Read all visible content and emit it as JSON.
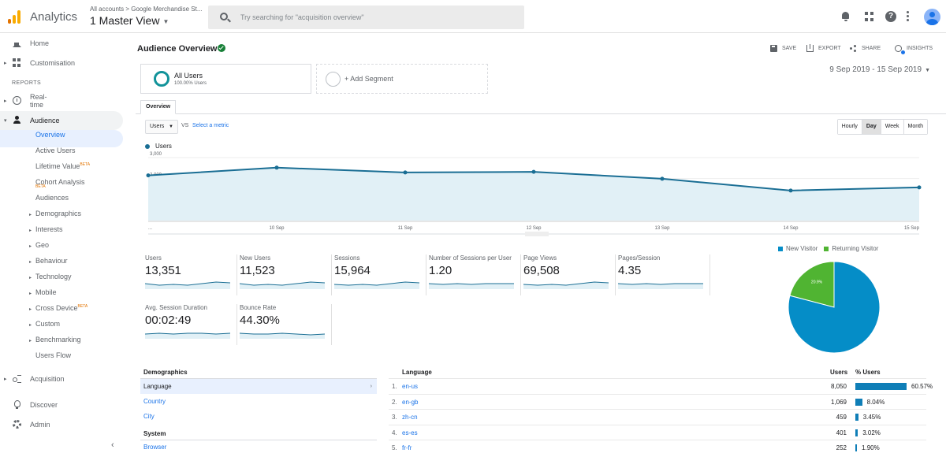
{
  "header": {
    "app_title": "Analytics",
    "account_path": "All accounts > Google Merchandise St...",
    "view_name": "1 Master View",
    "search_placeholder": "Try searching for \"acquisition overview\"",
    "icons": [
      "bell-icon",
      "apps-grid-icon",
      "help-icon",
      "more-vert-icon",
      "avatar"
    ]
  },
  "sidebar": {
    "home": "Home",
    "customisation": "Customisation",
    "reports_heading": "REPORTS",
    "realtime": "Real-time",
    "audience": "Audience",
    "audience_items": [
      {
        "label": "Overview",
        "beta": ""
      },
      {
        "label": "Active Users",
        "beta": ""
      },
      {
        "label": "Lifetime Value",
        "beta": "BETA"
      },
      {
        "label": "Cohort Analysis",
        "beta": "BETA"
      },
      {
        "label": "Audiences",
        "beta": ""
      },
      {
        "label": "Demographics",
        "beta": ""
      },
      {
        "label": "Interests",
        "beta": ""
      },
      {
        "label": "Geo",
        "beta": ""
      },
      {
        "label": "Behaviour",
        "beta": ""
      },
      {
        "label": "Technology",
        "beta": ""
      },
      {
        "label": "Mobile",
        "beta": ""
      },
      {
        "label": "Cross Device",
        "beta": "BETA"
      },
      {
        "label": "Custom",
        "beta": ""
      },
      {
        "label": "Benchmarking",
        "beta": ""
      },
      {
        "label": "Users Flow",
        "beta": ""
      }
    ],
    "acquisition": "Acquisition",
    "discover": "Discover",
    "admin": "Admin",
    "collapse_glyph": "‹"
  },
  "main": {
    "title": "Audience Overview",
    "actions": {
      "save": "SAVE",
      "export": "EXPORT",
      "share": "SHARE",
      "insights": "INSIGHTS"
    },
    "segment_all": {
      "name": "All Users",
      "pct": "100.00% Users"
    },
    "segment_add": "+ Add Segment",
    "date_range": "9 Sep 2019 - 15 Sep 2019",
    "tab": "Overview",
    "metric_select": "Users",
    "vs": "VS",
    "select_metric": "Select a metric",
    "granularity": [
      "Hourly",
      "Day",
      "Week",
      "Month"
    ],
    "granularity_active": "Day",
    "legend_label": "Users"
  },
  "chart_data": [
    {
      "type": "line",
      "series": [
        {
          "name": "Users",
          "values": [
            2150,
            2520,
            2290,
            2320,
            1990,
            1430,
            1580
          ]
        }
      ],
      "x": [
        "9 Sep",
        "10 Sep",
        "11 Sep",
        "12 Sep",
        "13 Sep",
        "14 Sep",
        "15 Sep"
      ],
      "x_tick_labels": [
        "...",
        "10 Sep",
        "11 Sep",
        "12 Sep",
        "13 Sep",
        "14 Sep",
        "15 Sep"
      ],
      "y_ticks": [
        1000,
        2000,
        3000
      ],
      "y_tick_labels": [
        "1,000",
        "2,000",
        "3,000"
      ],
      "ylim": [
        0,
        3000
      ],
      "color": "#1a6e94",
      "fill": "#e1f0f6"
    },
    {
      "type": "pie",
      "labels": [
        "New Visitor",
        "Returning Visitor"
      ],
      "values": [
        79.1,
        20.9
      ],
      "label_text": [
        "79.1%",
        "20.9%"
      ],
      "colors": [
        "#058dc7",
        "#50b432"
      ]
    }
  ],
  "scorecards": [
    {
      "label": "Users",
      "value": "13,351"
    },
    {
      "label": "New Users",
      "value": "11,523"
    },
    {
      "label": "Sessions",
      "value": "15,964"
    },
    {
      "label": "Number of Sessions per User",
      "value": "1.20"
    },
    {
      "label": "Page Views",
      "value": "69,508"
    },
    {
      "label": "Pages/Session",
      "value": "4.35"
    },
    {
      "label": "Avg. Session Duration",
      "value": "00:02:49"
    },
    {
      "label": "Bounce Rate",
      "value": "44.30%"
    }
  ],
  "demographics": {
    "heading": "Demographics",
    "items": [
      "Language",
      "Country",
      "City"
    ],
    "system_heading": "System",
    "system_items": [
      "Browser"
    ]
  },
  "language_table": {
    "heading": "Language",
    "col_users": "Users",
    "col_pct": "% Users",
    "rows": [
      {
        "num": "1.",
        "name": "en-us",
        "users": "8,050",
        "pct": "60.57%",
        "fraction": 0.6057
      },
      {
        "num": "2.",
        "name": "en-gb",
        "users": "1,069",
        "pct": "8.04%",
        "fraction": 0.0804
      },
      {
        "num": "3.",
        "name": "zh-cn",
        "users": "459",
        "pct": "3.45%",
        "fraction": 0.0345
      },
      {
        "num": "4.",
        "name": "es-es",
        "users": "401",
        "pct": "3.02%",
        "fraction": 0.0302
      },
      {
        "num": "5.",
        "name": "fr-fr",
        "users": "252",
        "pct": "1.90%",
        "fraction": 0.019
      }
    ]
  }
}
